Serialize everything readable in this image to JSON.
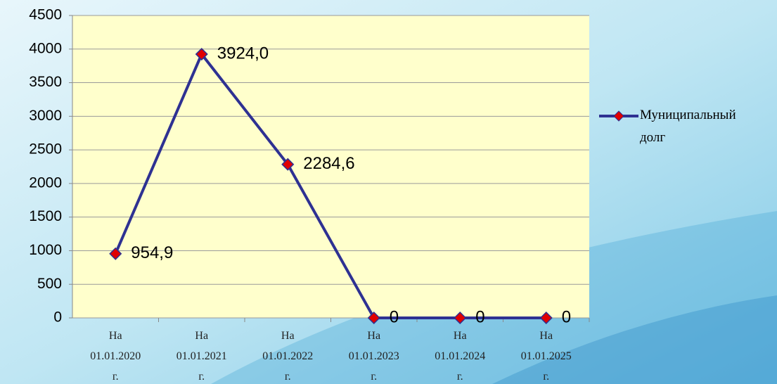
{
  "chart_data": {
    "type": "line",
    "categories": [
      "На 01.01.2020 г.",
      "На 01.01.2021 г.",
      "На 01.01.2022 г.",
      "На 01.01.2023 г.",
      "На 01.01.2024 г.",
      "На 01.01.2025 г."
    ],
    "series": [
      {
        "name": "Муниципальный долг",
        "color": "#2e3192",
        "marker_color": "#e00000",
        "values": [
          954.9,
          3924.0,
          2284.6,
          0,
          0,
          0
        ],
        "value_labels": [
          "954,9",
          "3924,0",
          "2284,6",
          "0",
          "0",
          "0"
        ]
      }
    ],
    "ylim": [
      0,
      4500
    ],
    "yticks": [
      0,
      500,
      1000,
      1500,
      2000,
      2500,
      3000,
      3500,
      4000,
      4500
    ],
    "grid": true,
    "legend": "right"
  }
}
